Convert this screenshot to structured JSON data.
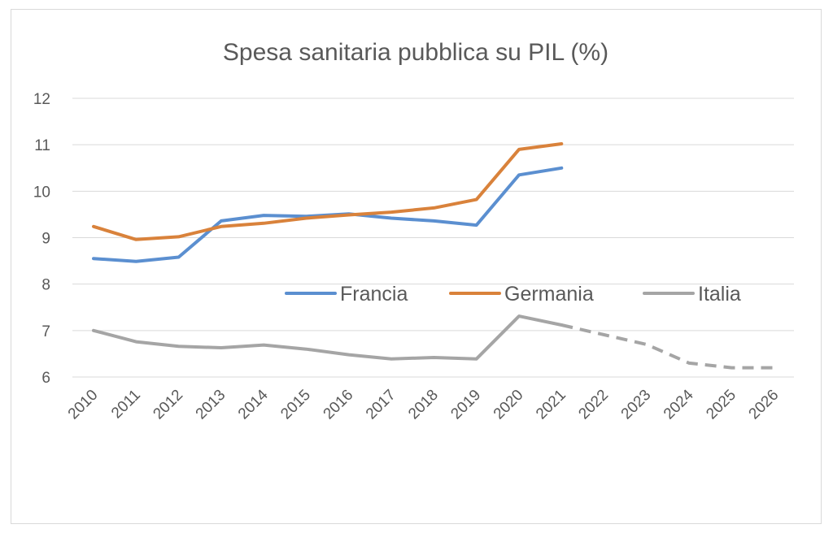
{
  "chart_data": {
    "type": "line",
    "title": "Spesa sanitaria pubblica su PIL (%)",
    "xlabel": "",
    "ylabel": "",
    "categories": [
      "2010",
      "2011",
      "2012",
      "2013",
      "2014",
      "2015",
      "2016",
      "2017",
      "2018",
      "2019",
      "2020",
      "2021",
      "2022",
      "2023",
      "2024",
      "2025",
      "2026"
    ],
    "ylim": [
      6,
      12
    ],
    "yticks": [
      "6",
      "7",
      "8",
      "9",
      "10",
      "11",
      "12"
    ],
    "grid": true,
    "legend_position": "middle-right",
    "series": [
      {
        "name": "Francia",
        "color": "#5b8fd0",
        "values": [
          8.55,
          8.49,
          8.58,
          9.36,
          9.48,
          9.46,
          9.51,
          9.42,
          9.36,
          9.27,
          10.35,
          10.5,
          null,
          null,
          null,
          null,
          null
        ]
      },
      {
        "name": "Germania",
        "color": "#d9823b",
        "values": [
          9.24,
          8.96,
          9.02,
          9.24,
          9.31,
          9.42,
          9.49,
          9.55,
          9.64,
          9.82,
          10.9,
          11.02,
          null,
          null,
          null,
          null,
          null
        ]
      },
      {
        "name": "Italia",
        "color": "#a5a5a5",
        "values": [
          7.0,
          6.76,
          6.66,
          6.63,
          6.69,
          6.6,
          6.48,
          6.39,
          6.42,
          6.39,
          7.31,
          7.12,
          6.91,
          6.7,
          6.3,
          6.2,
          6.2
        ],
        "dashed_from": "2021"
      }
    ]
  }
}
